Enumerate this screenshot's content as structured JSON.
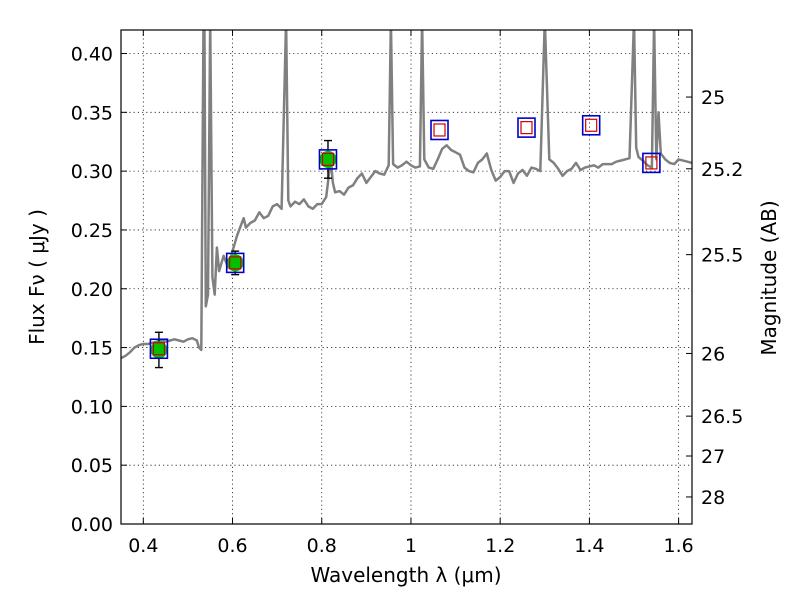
{
  "chart_data": {
    "type": "line",
    "xlabel": "Wavelength  λ (μm)",
    "ylabel": "Flux  Fν  ( μJy )",
    "y2label": "Magnitude (AB)",
    "xlim": [
      0.35,
      1.63
    ],
    "ylim": [
      0.0,
      0.42
    ],
    "grid": true,
    "colors": {
      "sed": "#808080",
      "observed_point": "#00c000",
      "model_box": "#0000cc",
      "model_inner": "#cc0000",
      "errorbar": "#000000"
    },
    "x_ticks": [
      {
        "value": 0.4,
        "label": "0.4"
      },
      {
        "value": 0.6,
        "label": "0.6"
      },
      {
        "value": 0.8,
        "label": "0.8"
      },
      {
        "value": 1.0,
        "label": "1"
      },
      {
        "value": 1.2,
        "label": "1.2"
      },
      {
        "value": 1.4,
        "label": "1.4"
      },
      {
        "value": 1.6,
        "label": "1.6"
      }
    ],
    "y_ticks": [
      {
        "value": 0.0,
        "label": "0.00"
      },
      {
        "value": 0.05,
        "label": "0.05"
      },
      {
        "value": 0.1,
        "label": "0.10"
      },
      {
        "value": 0.15,
        "label": "0.15"
      },
      {
        "value": 0.2,
        "label": "0.20"
      },
      {
        "value": 0.25,
        "label": "0.25"
      },
      {
        "value": 0.3,
        "label": "0.30"
      },
      {
        "value": 0.35,
        "label": "0.35"
      },
      {
        "value": 0.4,
        "label": "0.40"
      }
    ],
    "mag_ticks": [
      {
        "flux": 0.363,
        "label": "25"
      },
      {
        "flux": 0.302,
        "label": "25.2"
      },
      {
        "flux": 0.229,
        "label": "25.5"
      },
      {
        "flux": 0.145,
        "label": "26"
      },
      {
        "flux": 0.0917,
        "label": "26.5"
      },
      {
        "flux": 0.0578,
        "label": "27"
      },
      {
        "flux": 0.023,
        "label": "28"
      }
    ],
    "sed_spectrum": {
      "x": [
        0.35,
        0.36,
        0.37,
        0.38,
        0.39,
        0.4,
        0.41,
        0.42,
        0.43,
        0.44,
        0.45,
        0.46,
        0.47,
        0.48,
        0.49,
        0.5,
        0.51,
        0.52,
        0.525,
        0.53,
        0.535,
        0.537,
        0.54,
        0.545,
        0.55,
        0.555,
        0.56,
        0.565,
        0.57,
        0.58,
        0.59,
        0.6,
        0.61,
        0.62,
        0.625,
        0.63,
        0.64,
        0.65,
        0.66,
        0.67,
        0.68,
        0.69,
        0.7,
        0.71,
        0.72,
        0.725,
        0.73,
        0.74,
        0.75,
        0.76,
        0.77,
        0.78,
        0.79,
        0.8,
        0.81,
        0.82,
        0.825,
        0.83,
        0.84,
        0.85,
        0.86,
        0.87,
        0.88,
        0.89,
        0.9,
        0.91,
        0.92,
        0.93,
        0.94,
        0.95,
        0.955,
        0.96,
        0.97,
        0.98,
        0.99,
        1.0,
        1.01,
        1.02,
        1.025,
        1.03,
        1.04,
        1.05,
        1.06,
        1.07,
        1.08,
        1.09,
        1.1,
        1.11,
        1.12,
        1.13,
        1.14,
        1.15,
        1.16,
        1.17,
        1.18,
        1.19,
        1.2,
        1.21,
        1.22,
        1.23,
        1.24,
        1.25,
        1.26,
        1.27,
        1.28,
        1.29,
        1.3,
        1.31,
        1.32,
        1.33,
        1.34,
        1.35,
        1.36,
        1.37,
        1.38,
        1.39,
        1.4,
        1.41,
        1.42,
        1.43,
        1.44,
        1.45,
        1.46,
        1.47,
        1.48,
        1.49,
        1.5,
        1.505,
        1.51,
        1.52,
        1.53,
        1.54,
        1.545,
        1.55,
        1.555,
        1.56,
        1.57,
        1.58,
        1.59,
        1.6,
        1.61,
        1.62,
        1.63
      ],
      "y": [
        0.141,
        0.143,
        0.146,
        0.15,
        0.152,
        0.153,
        0.153,
        0.154,
        0.155,
        0.156,
        0.155,
        0.156,
        0.157,
        0.156,
        0.155,
        0.157,
        0.158,
        0.156,
        0.15,
        0.148,
        0.42,
        0.42,
        0.185,
        0.195,
        0.42,
        0.21,
        0.195,
        0.235,
        0.215,
        0.228,
        0.218,
        0.232,
        0.245,
        0.255,
        0.26,
        0.252,
        0.256,
        0.258,
        0.265,
        0.26,
        0.262,
        0.27,
        0.272,
        0.268,
        0.42,
        0.275,
        0.27,
        0.274,
        0.272,
        0.276,
        0.27,
        0.268,
        0.272,
        0.272,
        0.278,
        0.31,
        0.29,
        0.282,
        0.283,
        0.28,
        0.286,
        0.288,
        0.294,
        0.298,
        0.29,
        0.295,
        0.3,
        0.298,
        0.297,
        0.305,
        0.42,
        0.306,
        0.303,
        0.305,
        0.308,
        0.305,
        0.303,
        0.304,
        0.42,
        0.31,
        0.303,
        0.302,
        0.31,
        0.319,
        0.322,
        0.318,
        0.316,
        0.314,
        0.303,
        0.3,
        0.299,
        0.307,
        0.31,
        0.315,
        0.301,
        0.292,
        0.295,
        0.3,
        0.3,
        0.29,
        0.298,
        0.301,
        0.296,
        0.303,
        0.302,
        0.3,
        0.42,
        0.31,
        0.307,
        0.302,
        0.296,
        0.3,
        0.302,
        0.307,
        0.301,
        0.303,
        0.304,
        0.305,
        0.303,
        0.306,
        0.306,
        0.306,
        0.308,
        0.309,
        0.31,
        0.311,
        0.42,
        0.32,
        0.312,
        0.309,
        0.305,
        0.303,
        0.42,
        0.31,
        0.35,
        0.315,
        0.31,
        0.307,
        0.306,
        0.31,
        0.309,
        0.308,
        0.307
      ]
    },
    "observed": [
      {
        "x": 0.435,
        "y": 0.148,
        "err": 0.015
      },
      {
        "x": 0.606,
        "y": 0.222,
        "err": 0.01
      },
      {
        "x": 0.814,
        "y": 0.31,
        "err": 0.016
      }
    ],
    "model_points": [
      {
        "x": 0.435,
        "y": 0.149
      },
      {
        "x": 0.606,
        "y": 0.222
      },
      {
        "x": 0.814,
        "y": 0.31
      },
      {
        "x": 1.064,
        "y": 0.335
      },
      {
        "x": 1.259,
        "y": 0.337
      },
      {
        "x": 1.404,
        "y": 0.339
      },
      {
        "x": 1.539,
        "y": 0.307
      }
    ]
  }
}
